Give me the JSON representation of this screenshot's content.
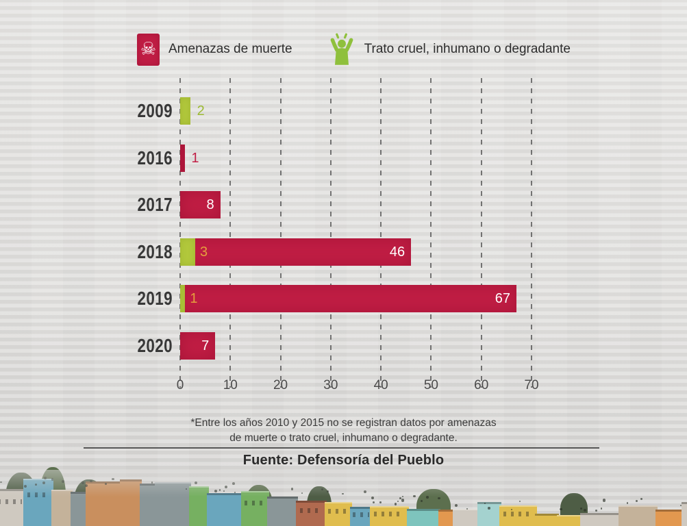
{
  "legend": {
    "items": [
      {
        "label": "Amenazas de muerte",
        "icon": "skull-crossbones",
        "color": "#c01d44"
      },
      {
        "label": "Trato cruel, inhumano o degradante",
        "icon": "person-arms-raised",
        "color": "#8fc03c"
      }
    ]
  },
  "chart_data": {
    "type": "bar",
    "orientation": "horizontal",
    "categories": [
      "2009",
      "2016",
      "2017",
      "2018",
      "2019",
      "2020"
    ],
    "series": [
      {
        "name": "Amenazas de muerte",
        "color": "#c01d44",
        "values": [
          0,
          1,
          8,
          46,
          67,
          7
        ]
      },
      {
        "name": "Trato cruel, inhumano o degradante",
        "color": "#b2c83c",
        "values": [
          2,
          0,
          0,
          3,
          1,
          0
        ]
      }
    ],
    "x_ticks": [
      0,
      10,
      20,
      30,
      40,
      50,
      60,
      70
    ],
    "xlim": [
      0,
      70
    ],
    "grid": "vertical-dashed",
    "legend_position": "top"
  },
  "colors": {
    "label_green_outside": "#9cba33",
    "label_red_outside": "#c01d44",
    "label_inside_white": "#ffffff",
    "label_green_on_red": "#e5a03c",
    "grid": "#4d4d4d",
    "year_text": "#383838",
    "axis_text": "#4a4a4a"
  },
  "footnote": {
    "lines": [
      "*Entre los años 2010 y 2015 no se registran datos por amenazas",
      "de muerte o trato cruel, inhumano o degradante."
    ]
  },
  "source": "Fuente: Defensoría del Pueblo",
  "footer_photo": {
    "description": "hillside-barrio-colorful-houses",
    "palette": [
      "#c98f5e",
      "#b06a4f",
      "#7ec4bd",
      "#a4d2cf",
      "#76b061",
      "#e0bd4e",
      "#cfc9c0",
      "#d08a6a",
      "#8a9698",
      "#e2984f",
      "#6aa6bd",
      "#c4b29a"
    ],
    "tree_colors": [
      "#4e5d45",
      "#5c6f4e"
    ]
  }
}
